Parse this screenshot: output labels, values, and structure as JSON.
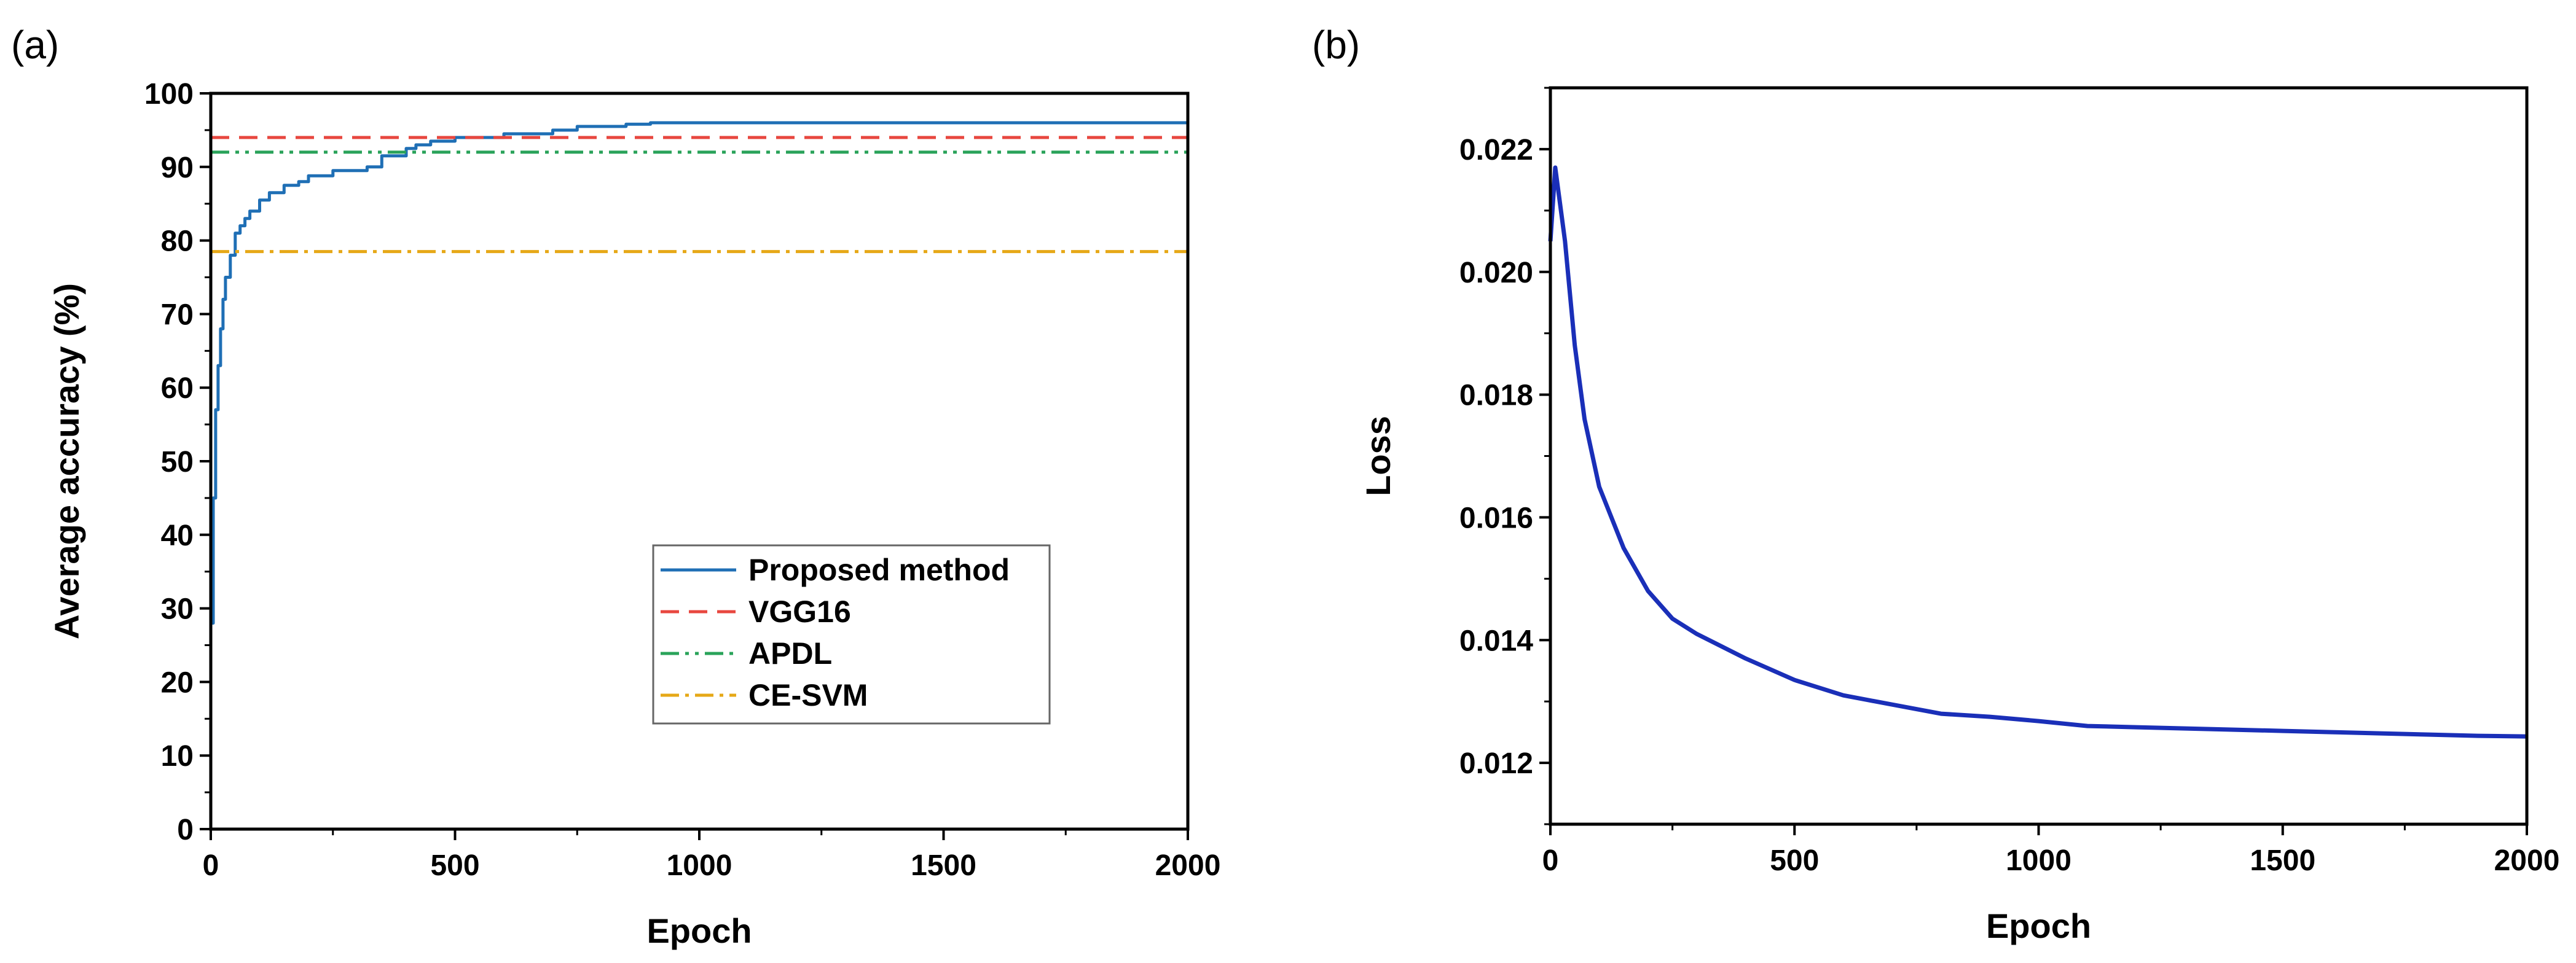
{
  "chart_data": [
    {
      "panel": "(a)",
      "type": "line",
      "xlabel": "Epoch",
      "ylabel": "Average accuracy (%)",
      "xlim": [
        0,
        2000
      ],
      "ylim": [
        0,
        100
      ],
      "xticks": [
        "0",
        "500",
        "1000",
        "1500",
        "2000"
      ],
      "yticks": [
        "0",
        "10",
        "20",
        "30",
        "40",
        "50",
        "60",
        "70",
        "80",
        "90",
        "100"
      ],
      "legend_position": "lower-right",
      "series": [
        {
          "name": "Proposed method",
          "color": "#1f6fb5",
          "style": "solid",
          "x": [
            0,
            5,
            10,
            15,
            20,
            25,
            30,
            40,
            50,
            60,
            70,
            80,
            100,
            120,
            150,
            180,
            200,
            250,
            300,
            320,
            350,
            400,
            420,
            450,
            500,
            550,
            600,
            650,
            700,
            750,
            800,
            850,
            900,
            1000,
            1500,
            2000
          ],
          "y": [
            28,
            45,
            57,
            63,
            68,
            72,
            75,
            78,
            81,
            82,
            83,
            84,
            85.5,
            86.5,
            87.5,
            88,
            88.8,
            89.5,
            89.5,
            90,
            91.5,
            92.5,
            93,
            93.5,
            94,
            94,
            94.5,
            94.5,
            95,
            95.5,
            95.5,
            95.8,
            96,
            96,
            96,
            96
          ]
        },
        {
          "name": "VGG16",
          "color": "#e8473f",
          "style": "dashed",
          "x": [
            0,
            2000
          ],
          "y": [
            94,
            94
          ]
        },
        {
          "name": "APDL",
          "color": "#2aa35a",
          "style": "dash-dot-dot",
          "x": [
            0,
            2000
          ],
          "y": [
            92,
            92
          ]
        },
        {
          "name": "CE-SVM",
          "color": "#e6a817",
          "style": "dash-dot",
          "x": [
            0,
            2000
          ],
          "y": [
            78.5,
            78.5
          ]
        }
      ]
    },
    {
      "panel": "(b)",
      "type": "line",
      "xlabel": "Epoch",
      "ylabel": "Loss",
      "xlim": [
        0,
        2000
      ],
      "ylim": [
        0.011,
        0.023
      ],
      "xticks": [
        "0",
        "500",
        "1000",
        "1500",
        "2000"
      ],
      "yticks": [
        "0.012",
        "0.014",
        "0.016",
        "0.018",
        "0.020",
        "0.022"
      ],
      "series": [
        {
          "name": "Loss",
          "color": "#1a2fb8",
          "style": "solid",
          "x": [
            0,
            10,
            30,
            50,
            70,
            100,
            150,
            200,
            250,
            300,
            400,
            500,
            600,
            700,
            800,
            900,
            1000,
            1100,
            1200,
            1300,
            1400,
            1500,
            1600,
            1700,
            1800,
            1900,
            2000
          ],
          "y": [
            0.0205,
            0.0217,
            0.0205,
            0.0188,
            0.0176,
            0.0165,
            0.0155,
            0.0148,
            0.01435,
            0.0141,
            0.0137,
            0.01335,
            0.0131,
            0.01295,
            0.0128,
            0.01275,
            0.01268,
            0.0126,
            0.01258,
            0.01256,
            0.01254,
            0.01252,
            0.0125,
            0.01248,
            0.01246,
            0.01244,
            0.01243
          ]
        }
      ]
    }
  ]
}
